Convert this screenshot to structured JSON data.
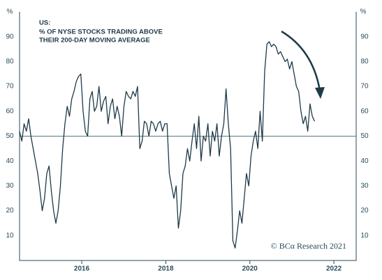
{
  "chart_data": {
    "type": "line",
    "title": "US:",
    "subtitle": [
      "% OF NYSE STOCKS TRADING ABOVE",
      "THEIR 200-DAY MOVING AVERAGE"
    ],
    "y_unit": "%",
    "annotation": "© BCα Research 2021",
    "x": [
      2014.52,
      2014.574,
      2014.628,
      2014.682,
      2014.736,
      2014.79,
      2014.844,
      2014.898,
      2014.952,
      2015.006,
      2015.06,
      2015.114,
      2015.168,
      2015.222,
      2015.276,
      2015.33,
      2015.384,
      2015.438,
      2015.492,
      2015.546,
      2015.6,
      2015.654,
      2015.708,
      2015.762,
      2015.816,
      2015.87,
      2015.924,
      2015.978,
      2016.032,
      2016.086,
      2016.14,
      2016.194,
      2016.248,
      2016.302,
      2016.356,
      2016.41,
      2016.464,
      2016.518,
      2016.572,
      2016.626,
      2016.68,
      2016.734,
      2016.788,
      2016.842,
      2016.896,
      2016.95,
      2017.004,
      2017.058,
      2017.112,
      2017.166,
      2017.22,
      2017.274,
      2017.328,
      2017.382,
      2017.436,
      2017.49,
      2017.544,
      2017.598,
      2017.652,
      2017.706,
      2017.76,
      2017.814,
      2017.868,
      2017.922,
      2017.976,
      2018.03,
      2018.084,
      2018.138,
      2018.192,
      2018.246,
      2018.3,
      2018.354,
      2018.408,
      2018.462,
      2018.516,
      2018.57,
      2018.624,
      2018.678,
      2018.732,
      2018.786,
      2018.84,
      2018.894,
      2018.948,
      2019.002,
      2019.056,
      2019.11,
      2019.164,
      2019.218,
      2019.272,
      2019.326,
      2019.38,
      2019.434,
      2019.488,
      2019.542,
      2019.596,
      2019.65,
      2019.704,
      2019.758,
      2019.812,
      2019.866,
      2019.92,
      2019.974,
      2020.028,
      2020.082,
      2020.136,
      2020.19,
      2020.244,
      2020.298,
      2020.352,
      2020.406,
      2020.46,
      2020.514,
      2020.568,
      2020.622,
      2020.676,
      2020.73,
      2020.784,
      2020.838,
      2020.892,
      2020.946,
      2021.0,
      2021.054,
      2021.108,
      2021.162,
      2021.216,
      2021.27,
      2021.324,
      2021.378,
      2021.432,
      2021.486,
      2021.54
    ],
    "series": [
      {
        "color": "#1f3a48",
        "values": [
          52,
          48,
          55,
          52,
          57,
          50,
          45,
          40,
          35,
          28,
          20,
          25,
          35,
          38,
          28,
          20,
          15,
          20,
          30,
          45,
          55,
          62,
          58,
          65,
          68,
          72,
          74,
          75,
          60,
          52,
          50,
          65,
          68,
          60,
          62,
          70,
          60,
          64,
          66,
          55,
          62,
          65,
          57,
          62,
          58,
          50,
          62,
          68,
          66,
          65,
          68,
          66,
          70,
          45,
          48,
          56,
          55,
          50,
          56,
          55,
          52,
          55,
          56,
          52,
          55,
          55,
          35,
          30,
          25,
          30,
          13,
          20,
          35,
          38,
          45,
          40,
          48,
          55,
          45,
          58,
          40,
          50,
          48,
          55,
          42,
          52,
          48,
          55,
          42,
          50,
          55,
          69,
          55,
          45,
          8,
          5,
          12,
          20,
          15,
          25,
          35,
          30,
          42,
          48,
          52,
          45,
          60,
          48,
          76,
          87,
          88,
          86,
          87,
          86,
          83,
          84,
          82,
          80,
          81,
          77,
          80,
          75,
          70,
          68,
          60,
          55,
          58,
          52,
          63,
          58,
          56
        ]
      }
    ],
    "reference_line": 50,
    "xlim": [
      2014.52,
      2022.53
    ],
    "xticks": [
      2016,
      2018,
      2020,
      2022
    ],
    "ylim": [
      0,
      100
    ],
    "yticks": [
      10,
      20,
      30,
      40,
      50,
      60,
      70,
      80,
      90
    ]
  }
}
